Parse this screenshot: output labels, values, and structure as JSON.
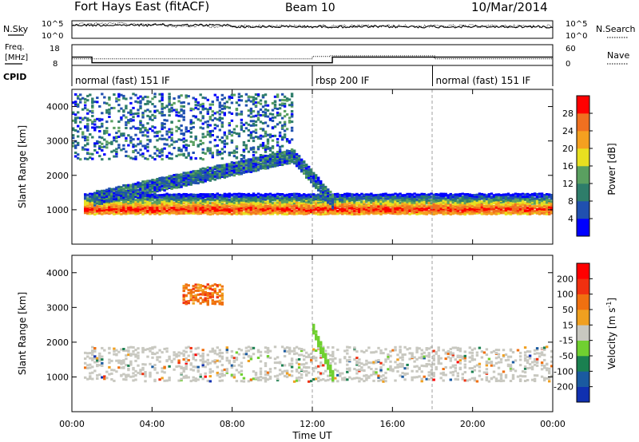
{
  "header": {
    "title": "Fort Hays East (fitACF)",
    "beam": "Beam 10",
    "date": "10/Mar/2014"
  },
  "noise_panel": {
    "left_label": "N.Sky",
    "left_ticks": [
      "10^5",
      "10^0"
    ],
    "right_ticks": [
      "10^5",
      "10^0"
    ],
    "right_label": "N.Search"
  },
  "freq_panel": {
    "left_label_1": "Freq.",
    "left_label_2": "[MHz]",
    "left_ticks": [
      "18",
      "8"
    ],
    "right_ticks": [
      "60",
      "0"
    ],
    "right_label": "Nave",
    "freq_steps": [
      {
        "t": 0,
        "v": 12
      },
      {
        "t": 1.0,
        "v": 9.3
      },
      {
        "t": 13.0,
        "v": 12
      }
    ],
    "nave_steps": [
      {
        "t": 0,
        "v": 19
      },
      {
        "t": 12.0,
        "v": 26
      },
      {
        "t": 12.9,
        "v": 28
      },
      {
        "t": 18.1,
        "v": 19
      }
    ]
  },
  "cpid": {
    "label": "CPID",
    "segments": [
      {
        "label": "normal (fast) 151 IF",
        "start": 0,
        "end": 12.0
      },
      {
        "label": "rbsp 200 IF",
        "start": 12.0,
        "end": 18.0
      },
      {
        "label": "normal (fast) 151 IF",
        "start": 18.0,
        "end": 24
      }
    ]
  },
  "chart_data": [
    {
      "type": "heatmap",
      "title": "Power",
      "ylabel": "Slant Range [km]",
      "xlabel": "Time UT",
      "x_range_hours": [
        0,
        24
      ],
      "ylim": [
        0,
        4500
      ],
      "yticks": [
        "1000",
        "2000",
        "3000",
        "4000"
      ],
      "colorbar_label": "Power [dB]",
      "colorbar_ticks": [
        "4",
        "8",
        "12",
        "16",
        "20",
        "24",
        "28"
      ],
      "colorbar_colors": [
        "#0000ff",
        "#2050b0",
        "#2e7d6a",
        "#5aa060",
        "#e8e020",
        "#f5a020",
        "#f07020",
        "#ff0000"
      ],
      "features": [
        {
          "name": "main band",
          "time_start": 0.5,
          "time_end": 24,
          "range_low_km": 900,
          "range_high_km": 1500
        },
        {
          "name": "rising band",
          "time_start": 1,
          "time_end": 13,
          "range_low_km": 1300,
          "range_high_km": 2900
        },
        {
          "name": "upper scatter",
          "time_start": 0,
          "time_end": 11,
          "range_low_km": 2500,
          "range_high_km": 4400
        }
      ]
    },
    {
      "type": "heatmap",
      "title": "Velocity",
      "ylabel": "Slant Range [km]",
      "xlabel": "Time UT",
      "x_range_hours": [
        0,
        24
      ],
      "ylim": [
        0,
        4500
      ],
      "yticks": [
        "1000",
        "2000",
        "3000",
        "4000"
      ],
      "colorbar_label": "Velocity [m s-1]",
      "colorbar_ticks": [
        "200",
        "100",
        "50",
        "15",
        "-15",
        "-50",
        "-100",
        "-200"
      ],
      "colorbar_colors": [
        "#1030b0",
        "#1a5aa0",
        "#1a8050",
        "#70d030",
        "#c8c8c0",
        "#f0a020",
        "#f07010",
        "#f03010",
        "#ff0000"
      ],
      "features": [
        {
          "name": "ground scatter band",
          "time_start": 0.5,
          "time_end": 24,
          "range_low_km": 900,
          "range_high_km": 1900
        },
        {
          "name": "green streak",
          "time_start": 12,
          "time_end": 13,
          "range_low_km": 1000,
          "range_high_km": 2400
        },
        {
          "name": "orange patch",
          "time_start": 5.5,
          "time_end": 7.5,
          "range_low_km": 3100,
          "range_high_km": 3700
        }
      ]
    }
  ],
  "xaxis": {
    "ticks": [
      "00:00",
      "04:00",
      "08:00",
      "12:00",
      "16:00",
      "20:00",
      "00:00"
    ],
    "label": "Time UT"
  },
  "colorbar_power": {
    "label": "Power [dB]"
  },
  "colorbar_velocity": {
    "label_main": "Velocity [m s",
    "label_sup": "-1",
    "label_end": "]"
  }
}
